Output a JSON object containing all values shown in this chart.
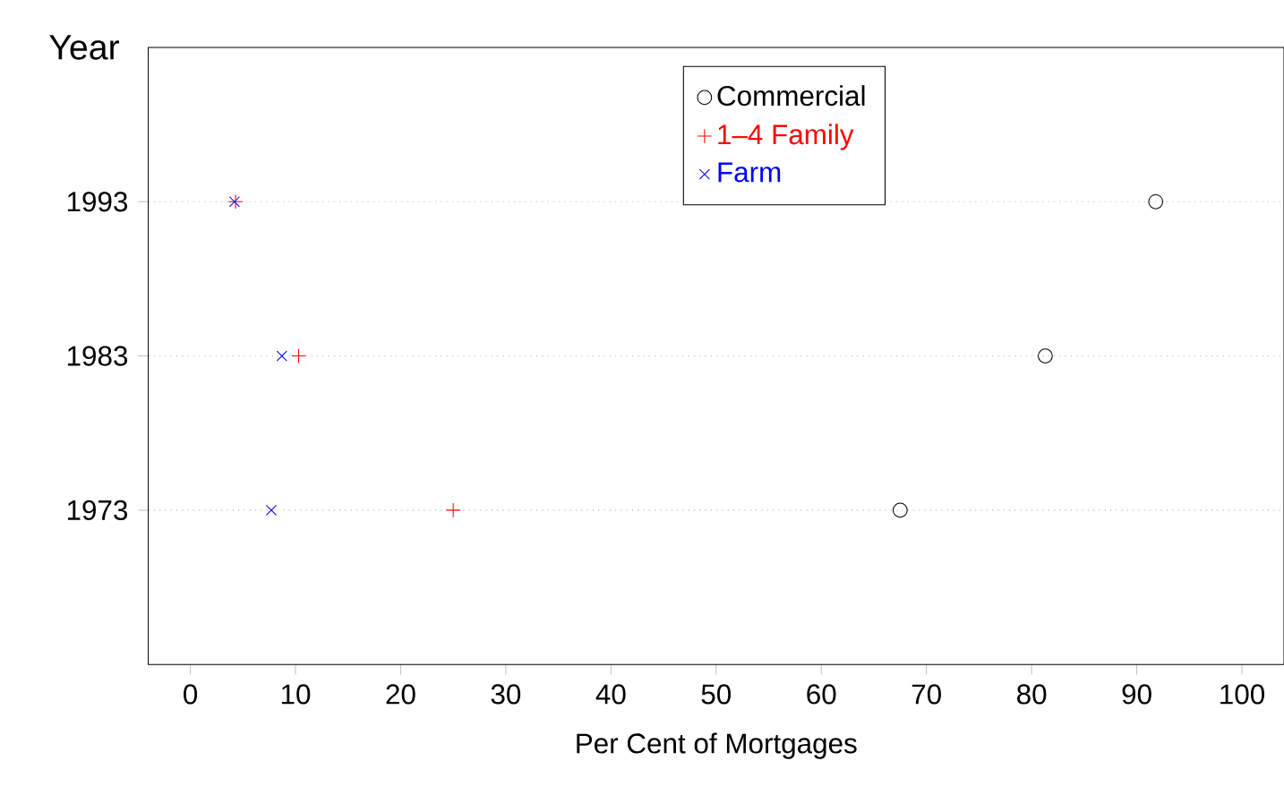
{
  "chart_data": {
    "type": "scatter",
    "xlabel": "Per Cent of Mortgages",
    "ylabel": "Year",
    "xlim": [
      -4,
      104
    ],
    "xticks": [
      0,
      10,
      20,
      30,
      40,
      50,
      60,
      70,
      80,
      90,
      100
    ],
    "ylim": [
      1963,
      2003
    ],
    "yticks": [
      1973,
      1983,
      1993
    ],
    "grid": "y",
    "legend": "top",
    "series": [
      {
        "name": "Commercial",
        "color": "#000000",
        "marker": "circle",
        "x": [
          67.5,
          81.3,
          91.8
        ],
        "values": [
          1973,
          1983,
          1993
        ]
      },
      {
        "name": "1–4 Family",
        "color": "#ff0000",
        "marker": "plus",
        "x": [
          25,
          10.3,
          4.3
        ],
        "values": [
          1973,
          1983,
          1993
        ]
      },
      {
        "name": "Farm",
        "color": "#0000ff",
        "marker": "cross",
        "x": [
          7.7,
          8.7,
          4.2
        ],
        "values": [
          1973,
          1983,
          1993
        ]
      }
    ]
  }
}
